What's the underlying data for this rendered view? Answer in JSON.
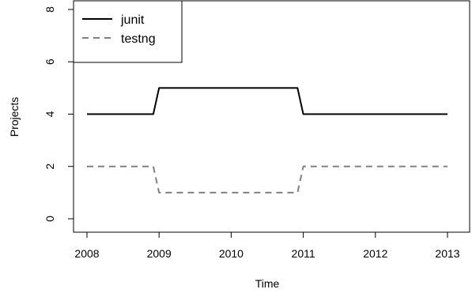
{
  "chart_data": {
    "type": "line",
    "title": "",
    "xlabel": "Time",
    "ylabel": "Projects",
    "xlim": [
      2008,
      2013
    ],
    "ylim": [
      0,
      8
    ],
    "x_ticks": [
      "2008",
      "2009",
      "2010",
      "2011",
      "2012",
      "2013"
    ],
    "y_ticks": [
      "0",
      "2",
      "4",
      "6",
      "8"
    ],
    "grid": false,
    "legend_position": "top-left",
    "series": [
      {
        "name": "junit",
        "color": "#000000",
        "line_style": "solid",
        "x": [
          2008.0,
          2008.92,
          2009.0,
          2010.92,
          2011.0,
          2013.0
        ],
        "values": [
          4,
          4,
          5,
          5,
          4,
          4
        ]
      },
      {
        "name": "testng",
        "color": "#808080",
        "line_style": "dashed",
        "x": [
          2008.0,
          2008.92,
          2009.0,
          2010.92,
          2011.0,
          2013.0
        ],
        "values": [
          2,
          2,
          1,
          1,
          2,
          2
        ]
      }
    ]
  }
}
